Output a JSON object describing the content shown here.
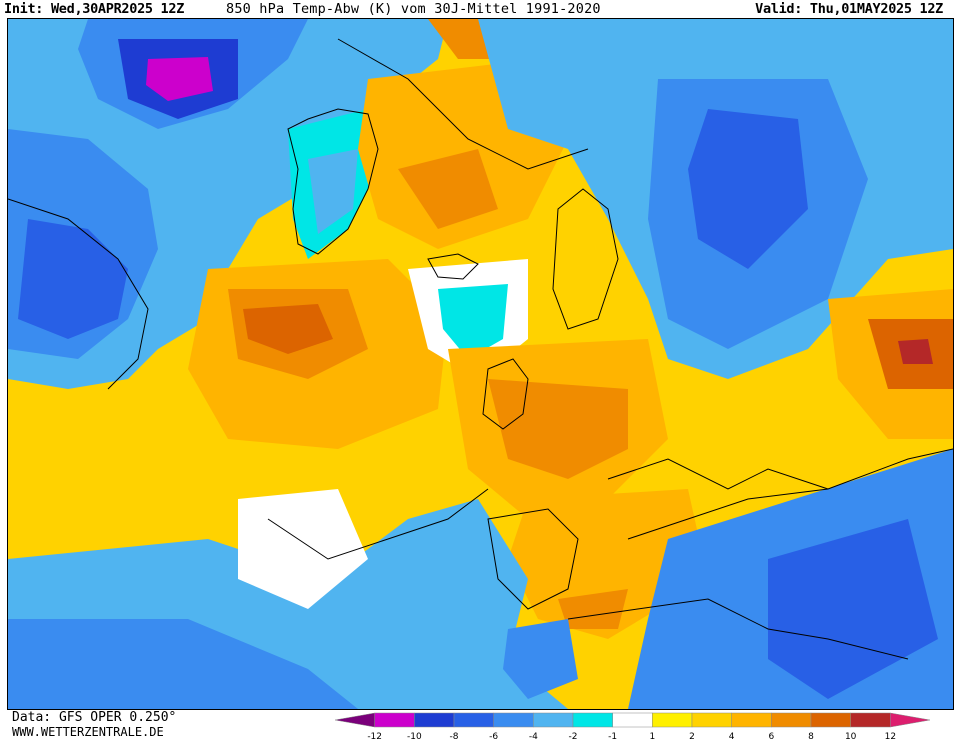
{
  "header": {
    "init_label": "Init:",
    "init_value": "Wed,30APR2025 12Z",
    "parameter": "850 hPa Temp-Abw (K) vom 30J-Mittel 1991-2020",
    "valid_label": "Valid:",
    "valid_value": "Thu,01MAY2025 12Z"
  },
  "footer": {
    "data_source": "Data: GFS OPER 0.250°",
    "website": "WWW.WETTERZENTRALE.DE"
  },
  "legend": {
    "colors": [
      "#7a007a",
      "#cc00cc",
      "#1e3cd2",
      "#2860e6",
      "#3a8cf0",
      "#50b4f0",
      "#00e6e6",
      "#ffffff",
      "#fff000",
      "#ffd200",
      "#ffb400",
      "#f08c00",
      "#dc6400",
      "#b42828",
      "#dc1e6e"
    ],
    "ticks": [
      "-12",
      "-10",
      "-8",
      "-6",
      "-4",
      "-2",
      "-1",
      "1",
      "2",
      "4",
      "6",
      "8",
      "10",
      "12"
    ]
  },
  "map": {
    "colors": {
      "ocean_white": "#ffffff",
      "cold_1": "#00e6e6",
      "cold_2": "#50b4f0",
      "cold_4": "#3a8cf0",
      "cold_6": "#2860e6",
      "cold_8": "#1e3cd2",
      "cold_10": "#cc00cc",
      "warm_1": "#fff000",
      "warm_2": "#ffd200",
      "warm_4": "#ffb400",
      "warm_6": "#f08c00",
      "warm_8": "#dc6400",
      "warm_10": "#b42828"
    }
  }
}
